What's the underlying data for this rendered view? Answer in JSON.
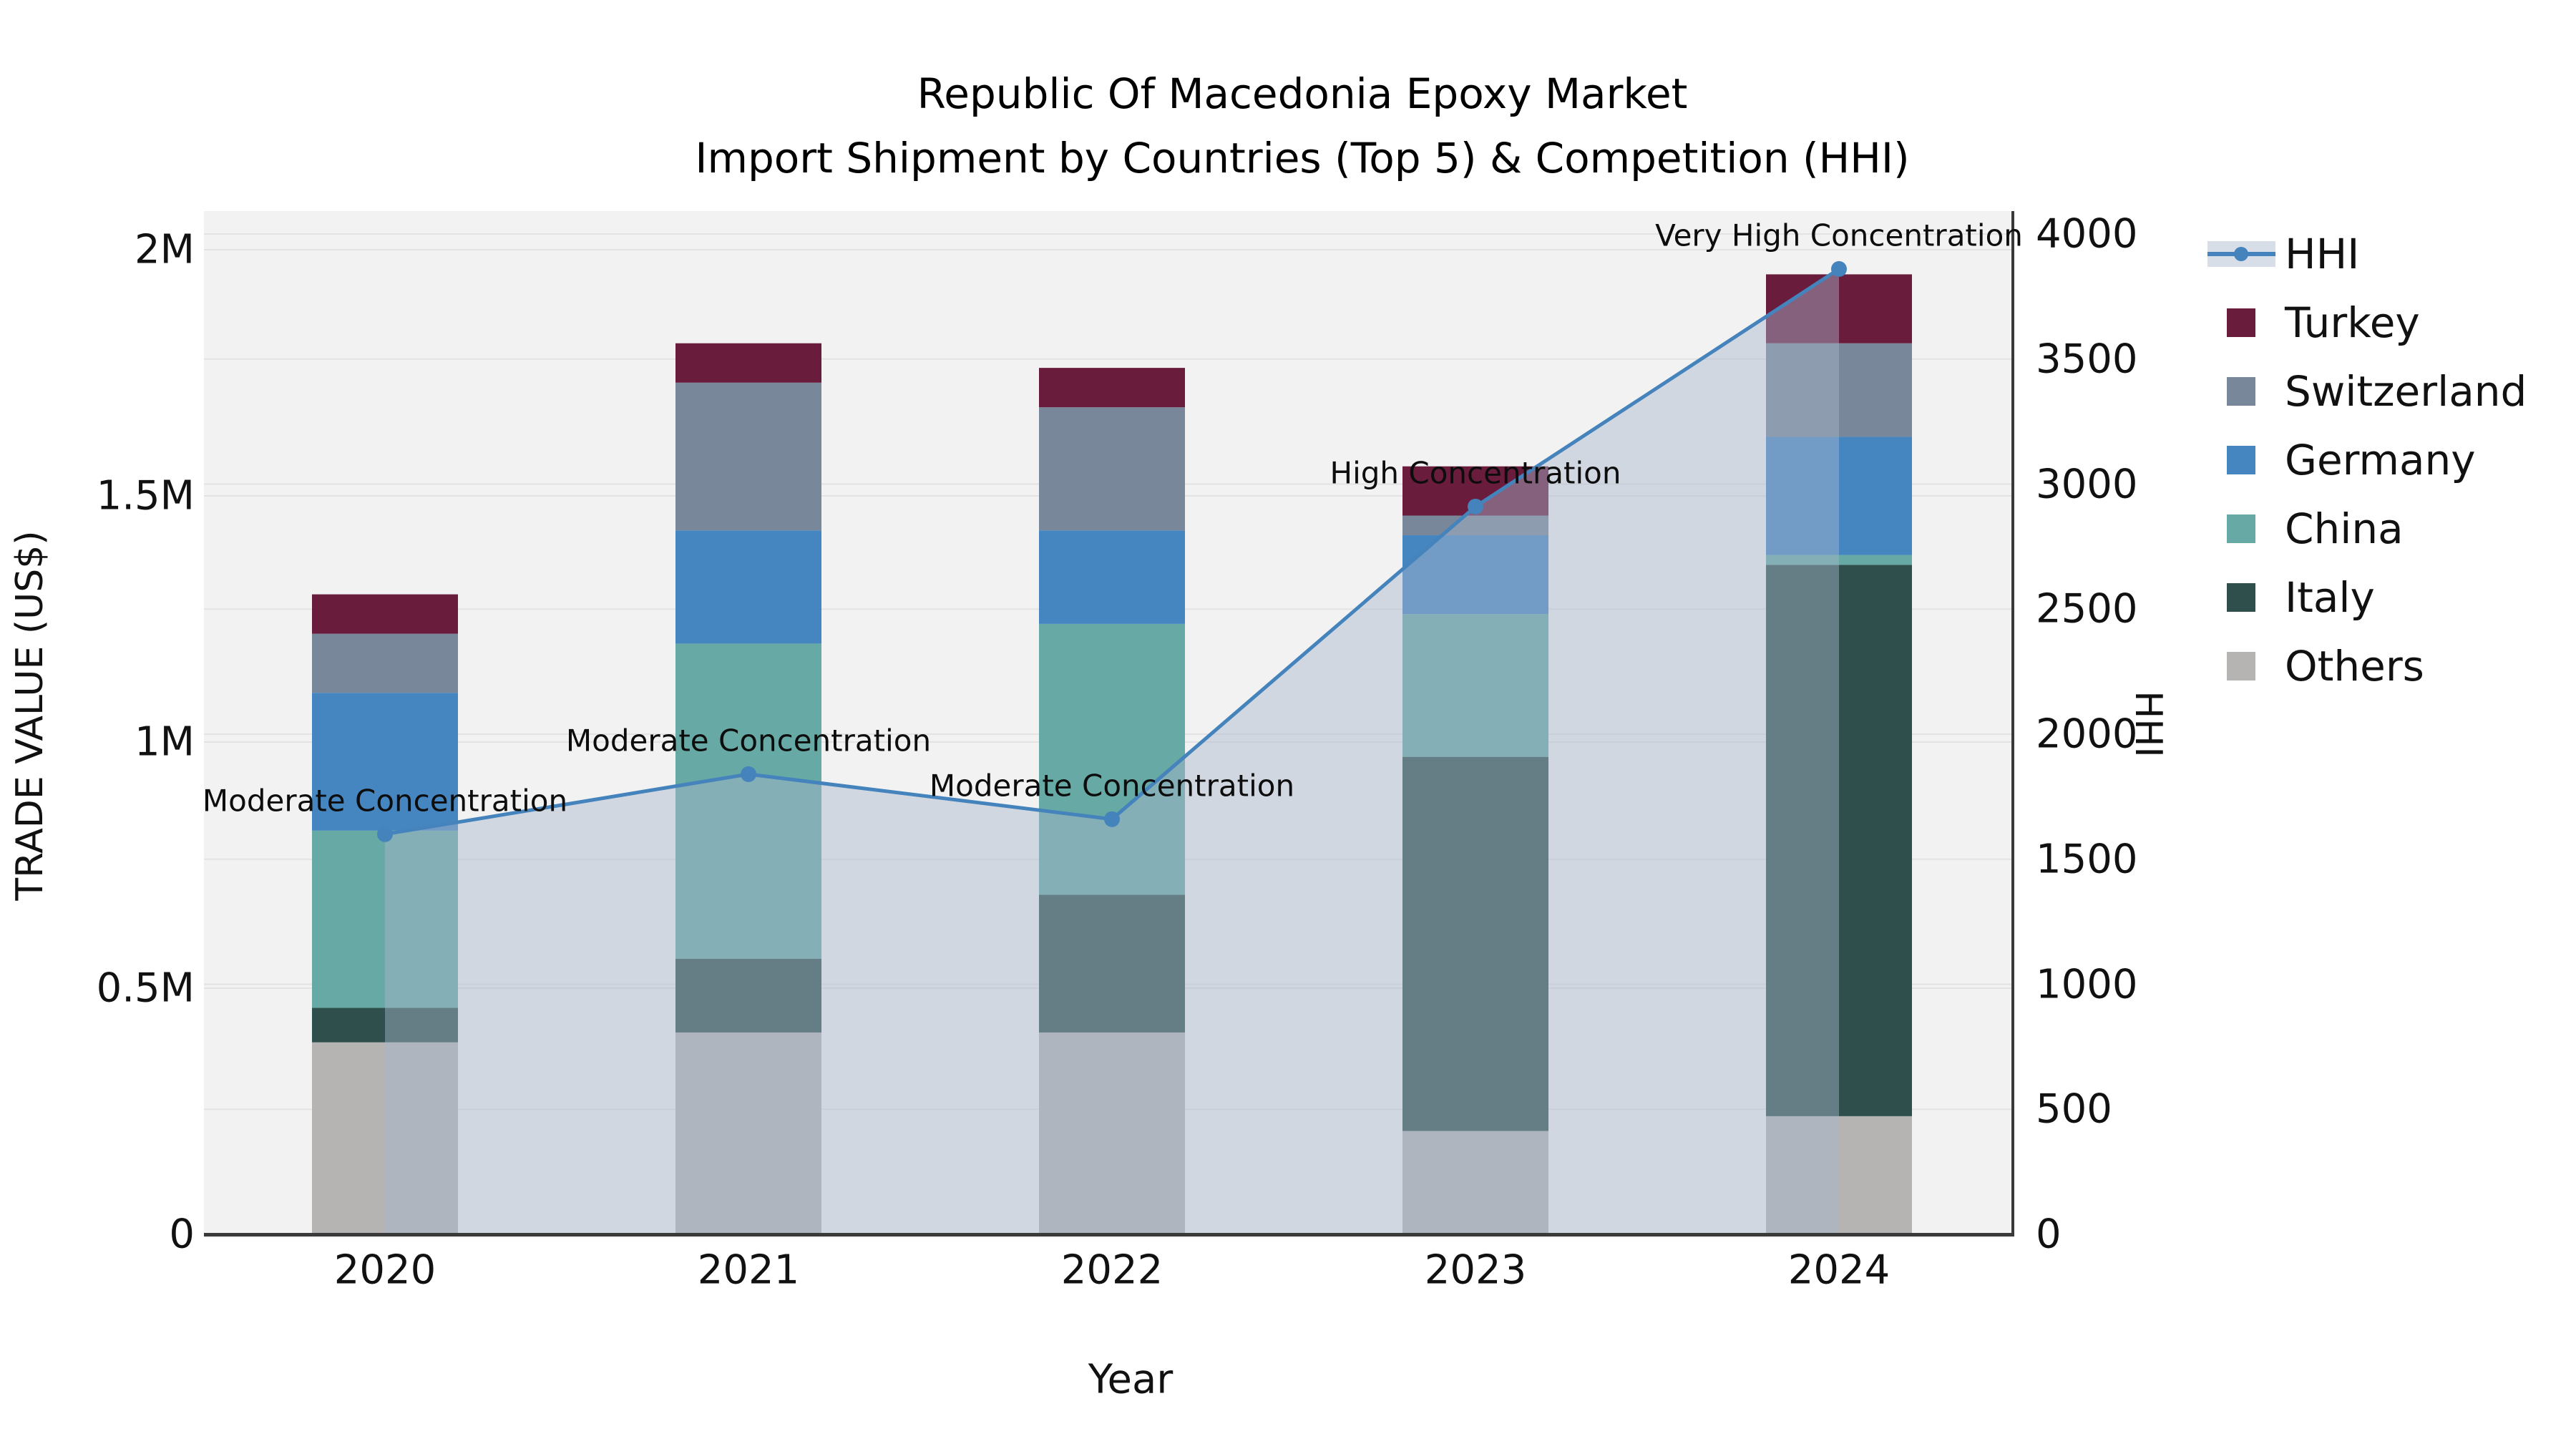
{
  "title": {
    "line1": "Republic Of Macedonia Epoxy Market",
    "line2": "Import Shipment by Countries (Top 5) & Competition (HHI)"
  },
  "axes": {
    "x": {
      "title": "Year",
      "tick_labels": [
        "2020",
        "2021",
        "2022",
        "2023",
        "2024"
      ]
    },
    "y_left": {
      "title": "TRADE VALUE (US$)",
      "tick_labels": [
        "0",
        "0.5M",
        "1M",
        "1.5M",
        "2M"
      ],
      "tick_values_millions": [
        0,
        0.5,
        1,
        1.5,
        2
      ],
      "range_millions": [
        0,
        2
      ]
    },
    "y_right": {
      "title": "HHI",
      "tick_labels": [
        "0",
        "500",
        "1000",
        "1500",
        "2000",
        "2500",
        "3000",
        "3500",
        "4000"
      ],
      "tick_values": [
        0,
        500,
        1000,
        1500,
        2000,
        2500,
        3000,
        3500,
        4000
      ],
      "range": [
        0,
        4000
      ]
    }
  },
  "legend": {
    "order": [
      "HHI",
      "Turkey",
      "Switzerland",
      "Germany",
      "China",
      "Italy",
      "Others"
    ]
  },
  "colors": {
    "plot_bg": "#F2F2F2",
    "grid": "#E3E3E3",
    "axis_line": "#3A3A3A",
    "text": "#1A1A1A"
  },
  "chart_data": {
    "type": "bar+line",
    "title": "Republic Of Macedonia Epoxy Market - Import Shipment by Countries (Top 5) & Competition (HHI)",
    "categories": [
      "2020",
      "2021",
      "2022",
      "2023",
      "2024"
    ],
    "xlabel": "Year",
    "ylabel_left": "TRADE VALUE (US$)",
    "ylabel_right": "HHI",
    "ylim_left_millions_usd": [
      0,
      2
    ],
    "ylim_right_hhi": [
      0,
      4000
    ],
    "legend_position": "right",
    "grid": true,
    "stack_order_bottom_to_top": [
      "Others",
      "Italy",
      "China",
      "Germany",
      "Switzerland",
      "Turkey"
    ],
    "series": [
      {
        "name": "Turkey",
        "color": "#6A1C3D",
        "values_millions_usd": [
          0.08,
          0.08,
          0.08,
          0.1,
          0.14
        ]
      },
      {
        "name": "Switzerland",
        "color": "#78889A",
        "values_millions_usd": [
          0.12,
          0.3,
          0.25,
          0.04,
          0.19
        ]
      },
      {
        "name": "Germany",
        "color": "#4585C0",
        "values_millions_usd": [
          0.28,
          0.23,
          0.19,
          0.16,
          0.24
        ]
      },
      {
        "name": "China",
        "color": "#67A9A4",
        "values_millions_usd": [
          0.36,
          0.64,
          0.55,
          0.29,
          0.02
        ]
      },
      {
        "name": "Italy",
        "color": "#2E4F4C",
        "values_millions_usd": [
          0.07,
          0.15,
          0.28,
          0.76,
          1.12
        ]
      },
      {
        "name": "Others",
        "color": "#B5B4B3",
        "values_millions_usd": [
          0.39,
          0.41,
          0.41,
          0.21,
          0.24
        ]
      }
    ],
    "hhi_line": {
      "name": "HHI",
      "color": "#4583BC",
      "area_fill_color": "rgba(168,182,204,0.45)",
      "values": [
        1600,
        1840,
        1660,
        2910,
        3860
      ],
      "annotations": [
        "Moderate Concentration",
        "Moderate Concentration",
        "Moderate Concentration",
        "High Concentration",
        "Very High Concentration"
      ]
    }
  }
}
